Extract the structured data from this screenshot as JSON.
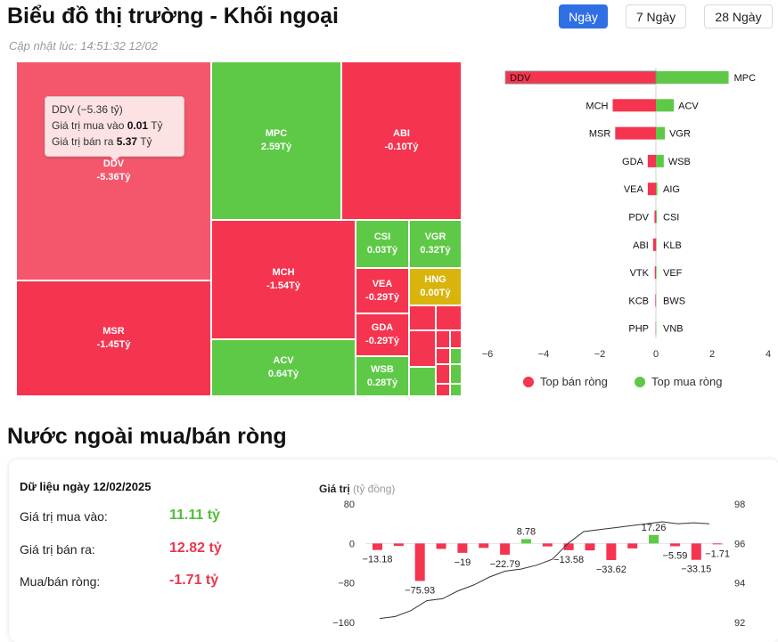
{
  "header": {
    "title": "Biểu đồ thị trường - Khối ngoại",
    "updated": "Cập nhật lúc: 14:51:32 12/02",
    "tabs": [
      {
        "label": "Ngày",
        "active": true
      },
      {
        "label": "7 Ngày",
        "active": false
      },
      {
        "label": "28 Ngày",
        "active": false
      }
    ]
  },
  "colors": {
    "sell": "#f5344f",
    "sell_light": "#f4576b",
    "buy": "#5ec946",
    "neutral": "#d9b40c",
    "accent": "#2f6fe4",
    "sell_text": "#e8384f",
    "buy_text": "#4fbe3a"
  },
  "treemap": {
    "tiles": [
      {
        "name": "DDV",
        "value": "-5.36Tỷ",
        "color": "sell_light"
      },
      {
        "name": "MSR",
        "value": "-1.45Tỷ",
        "color": "sell"
      },
      {
        "name": "MPC",
        "value": "2.59Tỷ",
        "color": "buy"
      },
      {
        "name": "ABI",
        "value": "-0.10Tỷ",
        "color": "sell"
      },
      {
        "name": "MCH",
        "value": "-1.54Tỷ",
        "color": "sell"
      },
      {
        "name": "ACV",
        "value": "0.64Tỷ",
        "color": "buy"
      },
      {
        "name": "CSI",
        "value": "0.03Tỷ",
        "color": "buy"
      },
      {
        "name": "VGR",
        "value": "0.32Tỷ",
        "color": "buy"
      },
      {
        "name": "VEA",
        "value": "-0.29Tỷ",
        "color": "sell"
      },
      {
        "name": "HNG",
        "value": "0.00Tỷ",
        "color": "neutral"
      },
      {
        "name": "GDA",
        "value": "-0.29Tỷ",
        "color": "sell"
      },
      {
        "name": "WSB",
        "value": "0.28Tỷ",
        "color": "buy"
      }
    ],
    "tooltip": {
      "title": "DDV (−5.36 tỷ)",
      "buy_label": "Giá trị mua vào",
      "buy_value": "0.01",
      "sell_label": "Giá trị bán ra",
      "sell_value": "5.37",
      "unit": "Tỷ"
    }
  },
  "chart_data": [
    {
      "type": "bar",
      "orientation": "horizontal",
      "xlim": [
        -6,
        4
      ],
      "x_ticks": [
        "−6",
        "−4",
        "−2",
        "0",
        "2",
        "4"
      ],
      "rows": [
        {
          "sell": "DDV",
          "sell_value": -5.36,
          "buy": "MPC",
          "buy_value": 2.59
        },
        {
          "sell": "MCH",
          "sell_value": -1.54,
          "buy": "ACV",
          "buy_value": 0.64
        },
        {
          "sell": "MSR",
          "sell_value": -1.45,
          "buy": "VGR",
          "buy_value": 0.32
        },
        {
          "sell": "GDA",
          "sell_value": -0.29,
          "buy": "WSB",
          "buy_value": 0.28
        },
        {
          "sell": "VEA",
          "sell_value": -0.29,
          "buy": "AIG",
          "buy_value": 0.05
        },
        {
          "sell": "PDV",
          "sell_value": -0.05,
          "buy": "CSI",
          "buy_value": 0.03
        },
        {
          "sell": "ABI",
          "sell_value": -0.1,
          "buy": "KLB",
          "buy_value": 0.02
        },
        {
          "sell": "VTK",
          "sell_value": -0.04,
          "buy": "VEF",
          "buy_value": 0.02
        },
        {
          "sell": "KCB",
          "sell_value": -0.02,
          "buy": "BWS",
          "buy_value": 0.01
        },
        {
          "sell": "PHP",
          "sell_value": -0.01,
          "buy": "VNB",
          "buy_value": 0.01
        }
      ],
      "series": [
        {
          "name": "Top bán ròng",
          "color": "#f5344f"
        },
        {
          "name": "Top mua ròng",
          "color": "#5ec946"
        }
      ]
    },
    {
      "type": "bar",
      "ylabel": "Giá trị",
      "ylabel_unit": "(tỷ đồng)",
      "ylim": [
        -160,
        80
      ],
      "y_ticks": [
        "80",
        "0",
        "−80",
        "−160"
      ],
      "y2lim": [
        92,
        98
      ],
      "y2_ticks": [
        "98",
        "96",
        "94",
        "92"
      ],
      "values": [
        -13.18,
        -5,
        -75.93,
        -11,
        -19,
        -9,
        -22.79,
        8.78,
        -6,
        -13.58,
        -14,
        -33.62,
        -10,
        17.26,
        -5.59,
        -33.15,
        -1.71
      ],
      "value_labels": [
        {
          "index": 0,
          "text": "−13.18"
        },
        {
          "index": 2,
          "text": "−75.93"
        },
        {
          "index": 4,
          "text": "−19"
        },
        {
          "index": 6,
          "text": "−22.79"
        },
        {
          "index": 7,
          "text": "8.78"
        },
        {
          "index": 9,
          "text": "−13.58"
        },
        {
          "index": 11,
          "text": "−33.62"
        },
        {
          "index": 13,
          "text": "17.26"
        },
        {
          "index": 14,
          "text": "−5.59"
        },
        {
          "index": 15,
          "text": "−33.15"
        },
        {
          "index": 16,
          "text": "−1.71"
        }
      ],
      "line": [
        92.2,
        92.3,
        92.6,
        93.1,
        93.2,
        93.6,
        93.9,
        94.3,
        94.6,
        94.7,
        94.9,
        95.2,
        96.0,
        96.6,
        96.7,
        96.8,
        96.9,
        97.0,
        97.1,
        97.0,
        97.05,
        97.0
      ]
    }
  ],
  "flows": {
    "date_title": "Dữ liệu ngày 12/02/2025",
    "buy_label": "Giá trị mua vào:",
    "buy_value": "11.11 tỷ",
    "sell_label": "Giá trị bán ra:",
    "sell_value": "12.82 tỷ",
    "net_label": "Mua/bán ròng:",
    "net_value": "-1.71 tỷ"
  },
  "section2_title": "Nước ngoài mua/bán ròng"
}
